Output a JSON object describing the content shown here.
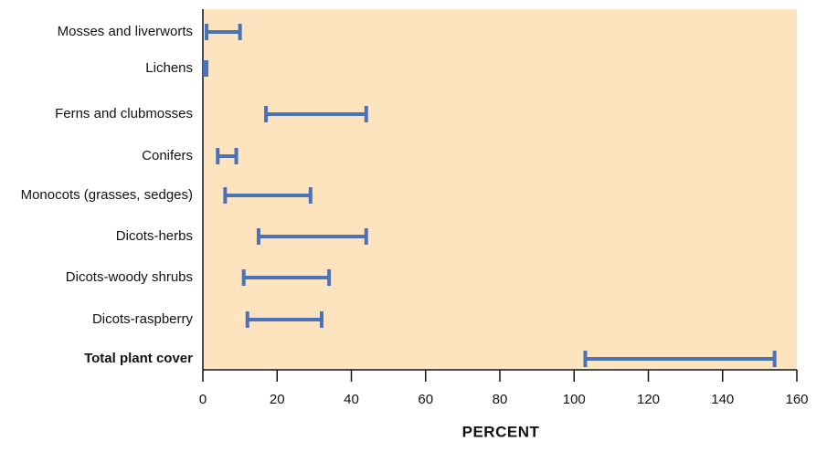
{
  "chart_data": {
    "type": "range",
    "categories": [
      "Mosses and liverworts",
      "Lichens",
      "Ferns and clubmosses",
      "Conifers",
      "Monocots (grasses, sedges)",
      "Dicots-herbs",
      "Dicots-woody shrubs",
      "Dicots-raspberry",
      "Total plant cover"
    ],
    "low": [
      1,
      0.5,
      17,
      4,
      6,
      15,
      11,
      12,
      103
    ],
    "high": [
      10,
      1,
      44,
      9,
      29,
      44,
      34,
      32,
      154
    ],
    "color": "#4a72b8",
    "xlabel": "PERCENT",
    "xlim": [
      0,
      160
    ],
    "xticks": [
      0,
      20,
      40,
      60,
      80,
      100,
      120,
      140,
      160
    ]
  }
}
